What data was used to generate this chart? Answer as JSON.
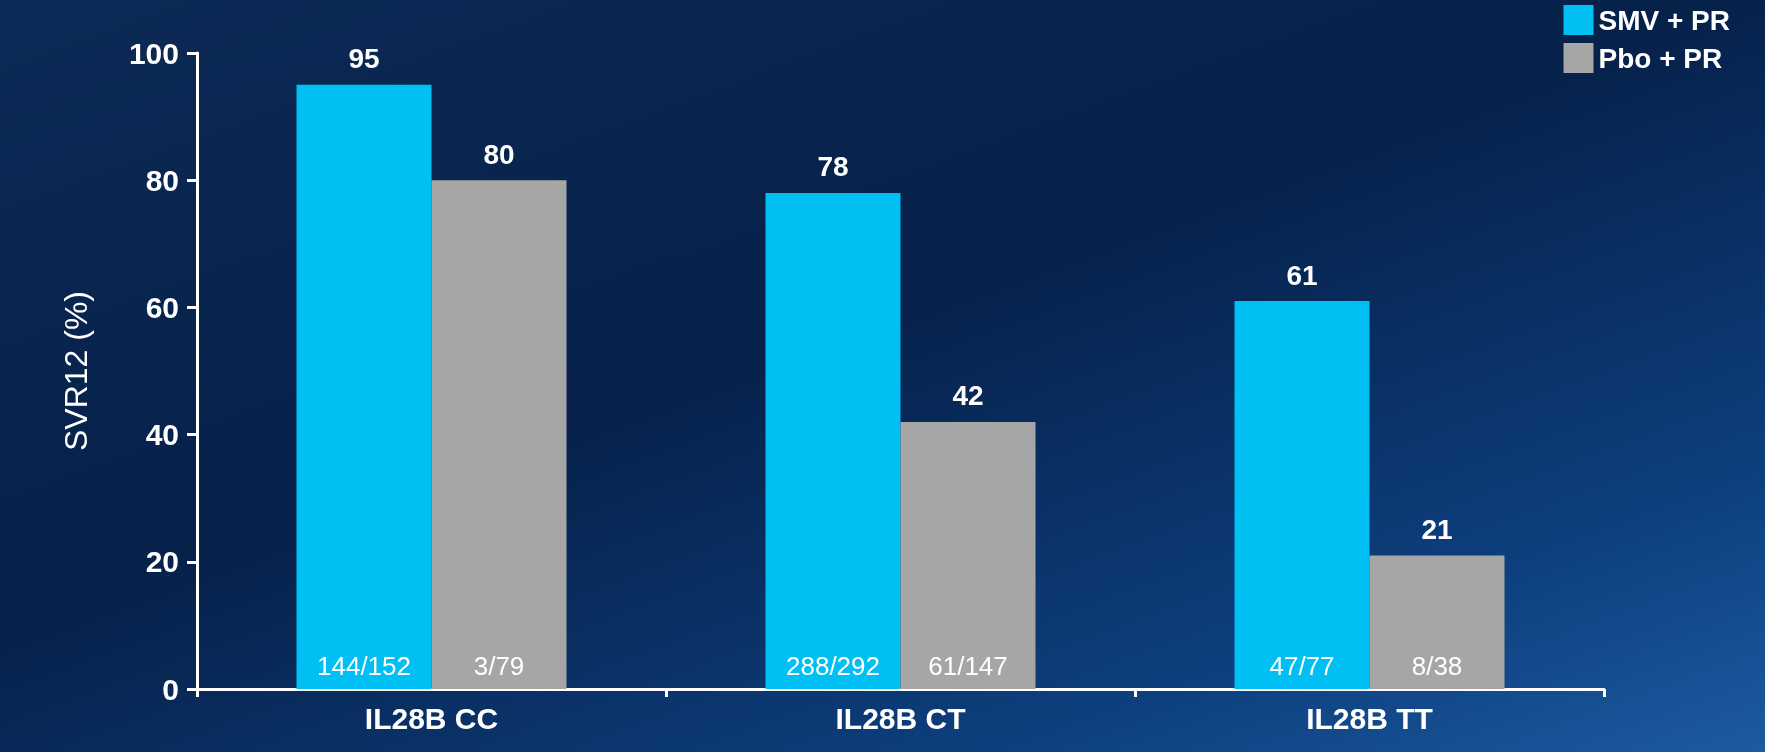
{
  "chart_data": {
    "type": "bar",
    "ylabel": "SVR12 (%)",
    "categories": [
      "IL28B CC",
      "IL28B CT",
      "IL28B TT"
    ],
    "series": [
      {
        "name": "SMV + PR",
        "color": "#00bff3",
        "values": [
          95,
          78,
          61
        ]
      },
      {
        "name": "Pbo + PR",
        "color": "#a6a6a6",
        "values": [
          80,
          42,
          21
        ]
      }
    ],
    "ylim": [
      0,
      100
    ],
    "yticks": [
      0,
      20,
      40,
      60,
      80,
      100
    ],
    "data_labels": true,
    "legend": "top right",
    "annotations": [
      {
        "text": "144/152",
        "x": "IL28B CC",
        "y": 0
      },
      {
        "text": "3/79",
        "x": "IL28B CC",
        "y": 0
      },
      {
        "text": "288/292",
        "x": "IL28B CT",
        "y": 0
      },
      {
        "text": "61/147",
        "x": "IL28B CT",
        "y": 0
      },
      {
        "text": "47/77",
        "x": "IL28B TT",
        "y": 0
      },
      {
        "text": "8/38",
        "x": "IL28B TT",
        "y": 0
      }
    ]
  }
}
